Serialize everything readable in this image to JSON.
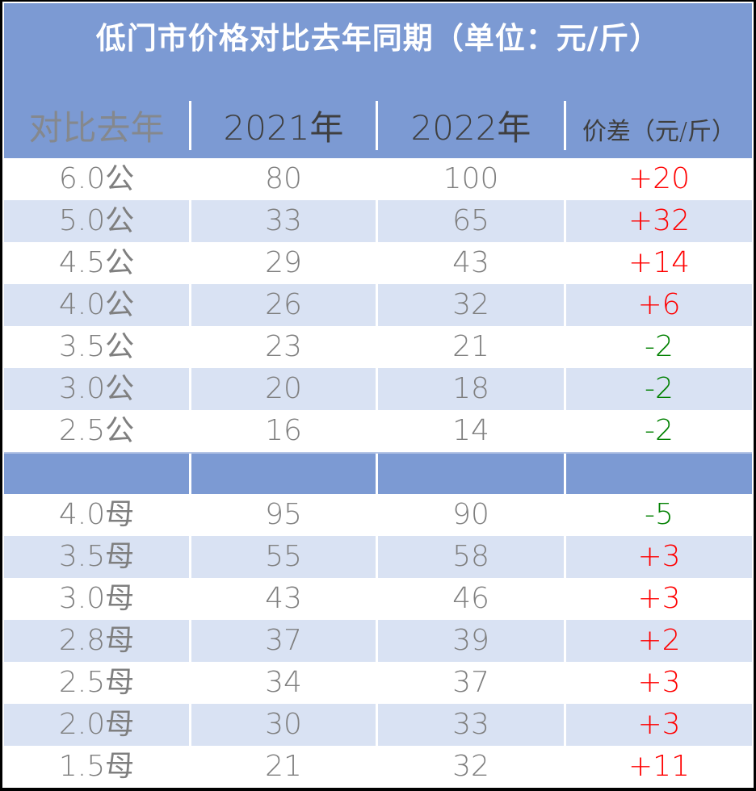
{
  "title": "低门市价格对比去年同期（单位：元/斤）",
  "chart_data": {
    "type": "table",
    "title": "低门市价格对比去年同期（单位：元/斤）",
    "unit": "元/斤",
    "columns": [
      "对比去年",
      "2021年",
      "2022年",
      "价差（元/斤）"
    ],
    "sections": [
      {
        "rows": [
          {
            "label": "6.0公",
            "y2021": "80",
            "y2022": "100",
            "diff": "+20"
          },
          {
            "label": "5.0公",
            "y2021": "33",
            "y2022": "65",
            "diff": "+32"
          },
          {
            "label": "4.5公",
            "y2021": "29",
            "y2022": "43",
            "diff": "+14"
          },
          {
            "label": "4.0公",
            "y2021": "26",
            "y2022": "32",
            "diff": "+6"
          },
          {
            "label": "3.5公",
            "y2021": "23",
            "y2022": "21",
            "diff": "-2"
          },
          {
            "label": "3.0公",
            "y2021": "20",
            "y2022": "18",
            "diff": "-2"
          },
          {
            "label": "2.5公",
            "y2021": "16",
            "y2022": "14",
            "diff": "-2"
          }
        ]
      },
      {
        "rows": [
          {
            "label": "4.0母",
            "y2021": "95",
            "y2022": "90",
            "diff": "-5"
          },
          {
            "label": "3.5母",
            "y2021": "55",
            "y2022": "58",
            "diff": "+3"
          },
          {
            "label": "3.0母",
            "y2021": "43",
            "y2022": "46",
            "diff": "+3"
          },
          {
            "label": "2.8母",
            "y2021": "37",
            "y2022": "39",
            "diff": "+2"
          },
          {
            "label": "2.5母",
            "y2021": "34",
            "y2022": "37",
            "diff": "+3"
          },
          {
            "label": "2.0母",
            "y2021": "30",
            "y2022": "33",
            "diff": "+3"
          },
          {
            "label": "1.5母",
            "y2021": "21",
            "y2022": "32",
            "diff": "+11"
          }
        ]
      }
    ]
  },
  "colors": {
    "header_blue": "#7C9AD3",
    "row_alt": "#D9E2F3",
    "increase": "#FF0000",
    "decrease": "#008000",
    "value_gray": "#7F7F7F",
    "header_dark": "#3F3F3F",
    "header_gray": "#85888D",
    "title_white": "#FFFFFF"
  }
}
